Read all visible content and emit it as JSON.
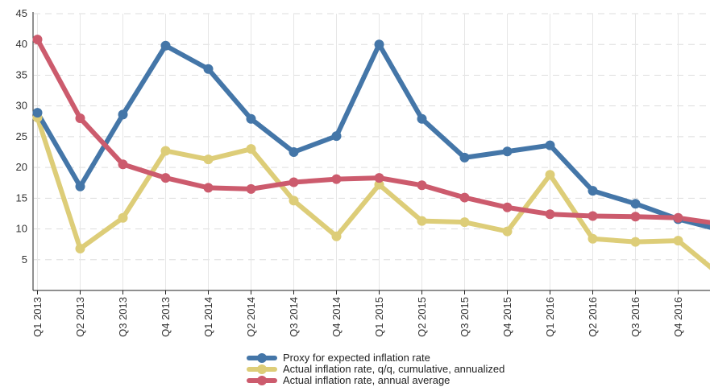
{
  "chart_data": {
    "type": "line",
    "title": "",
    "xlabel": "",
    "ylabel": "",
    "categories": [
      "Q1 2013",
      "Q2 2013",
      "Q3 2013",
      "Q4 2013",
      "Q1 2014",
      "Q2 2014",
      "Q3 2014",
      "Q4 2014",
      "Q1 2015",
      "Q2 2015",
      "Q3 2015",
      "Q4 2015",
      "Q1 2016",
      "Q2 2016",
      "Q3 2016",
      "Q4 2016",
      ""
    ],
    "ylim": [
      0,
      45
    ],
    "yticks": [
      5,
      10,
      15,
      20,
      25,
      30,
      35,
      40,
      45
    ],
    "grid": "horizontal-dashed",
    "legend_position": "bottom",
    "series": [
      {
        "name": "Proxy for expected inflation rate",
        "color": "#4476a8",
        "values": [
          28.9,
          16.9,
          28.6,
          39.8,
          36.0,
          27.9,
          22.5,
          25.1,
          40.0,
          27.9,
          21.6,
          22.6,
          23.6,
          16.2,
          14.1,
          11.6,
          9.8
        ]
      },
      {
        "name": "Actual inflation rate, q/q, cumulative, annualized",
        "color": "#ddcd78",
        "values": [
          28.1,
          6.8,
          11.8,
          22.7,
          21.3,
          23.0,
          14.6,
          8.8,
          17.2,
          11.3,
          11.1,
          9.6,
          18.8,
          8.4,
          7.9,
          8.1,
          2.4
        ]
      },
      {
        "name": "Actual inflation rate, annual average",
        "color": "#cc5b6d",
        "values": [
          40.8,
          28.0,
          20.5,
          18.3,
          16.7,
          16.5,
          17.6,
          18.1,
          18.3,
          17.1,
          15.1,
          13.5,
          12.4,
          12.1,
          12.0,
          11.8,
          10.8
        ]
      }
    ]
  }
}
